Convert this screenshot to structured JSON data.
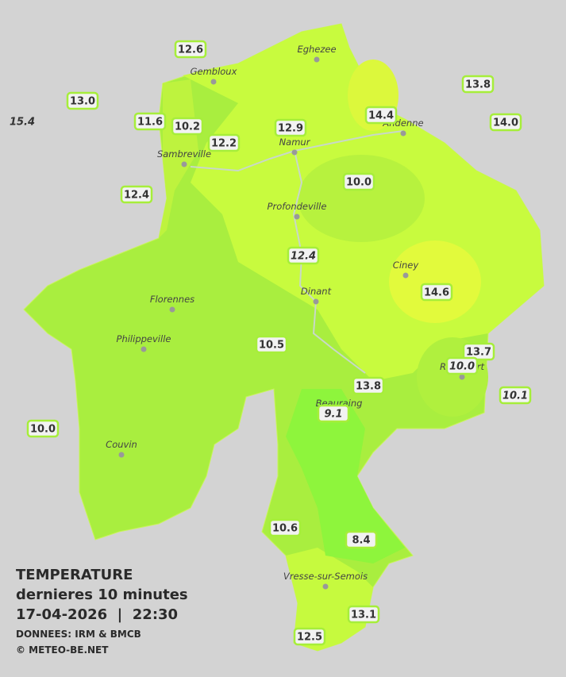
{
  "legend": {
    "title": "TEMPERATURE",
    "subtitle": "dernieres 10 minutes",
    "datetime": "17-04-2026  |  22:30",
    "source": "DONNEES: IRM & BMCB",
    "copyright": "© METEO-BE.NET"
  },
  "cities": [
    "Eghezee",
    "Gembloux",
    "Andenne",
    "Namur",
    "Sambreville",
    "Profondeville",
    "Ciney",
    "Dinant",
    "Florennes",
    "Philippeville",
    "Rochefort",
    "Beauraing",
    "Couvin",
    "Vresse-sur-Semois"
  ],
  "stations": [
    {
      "label": "12.6"
    },
    {
      "label": "13.0"
    },
    {
      "label": "15.4",
      "italic": true,
      "boxed": false
    },
    {
      "label": "11.6"
    },
    {
      "label": "10.2"
    },
    {
      "label": "12.2"
    },
    {
      "label": "12.9"
    },
    {
      "label": "14.4"
    },
    {
      "label": "13.8"
    },
    {
      "label": "14.0"
    },
    {
      "label": "12.4"
    },
    {
      "label": "10.0"
    },
    {
      "label": "12.4",
      "italic": true
    },
    {
      "label": "14.6"
    },
    {
      "label": "10.5"
    },
    {
      "label": "13.7"
    },
    {
      "label": "10.0",
      "italic": true
    },
    {
      "label": "10.1",
      "italic": true
    },
    {
      "label": "13.8"
    },
    {
      "label": "9.1",
      "italic": true
    },
    {
      "label": "10.0"
    },
    {
      "label": "10.6"
    },
    {
      "label": "8.4"
    },
    {
      "label": "13.1"
    },
    {
      "label": "12.5"
    }
  ]
}
